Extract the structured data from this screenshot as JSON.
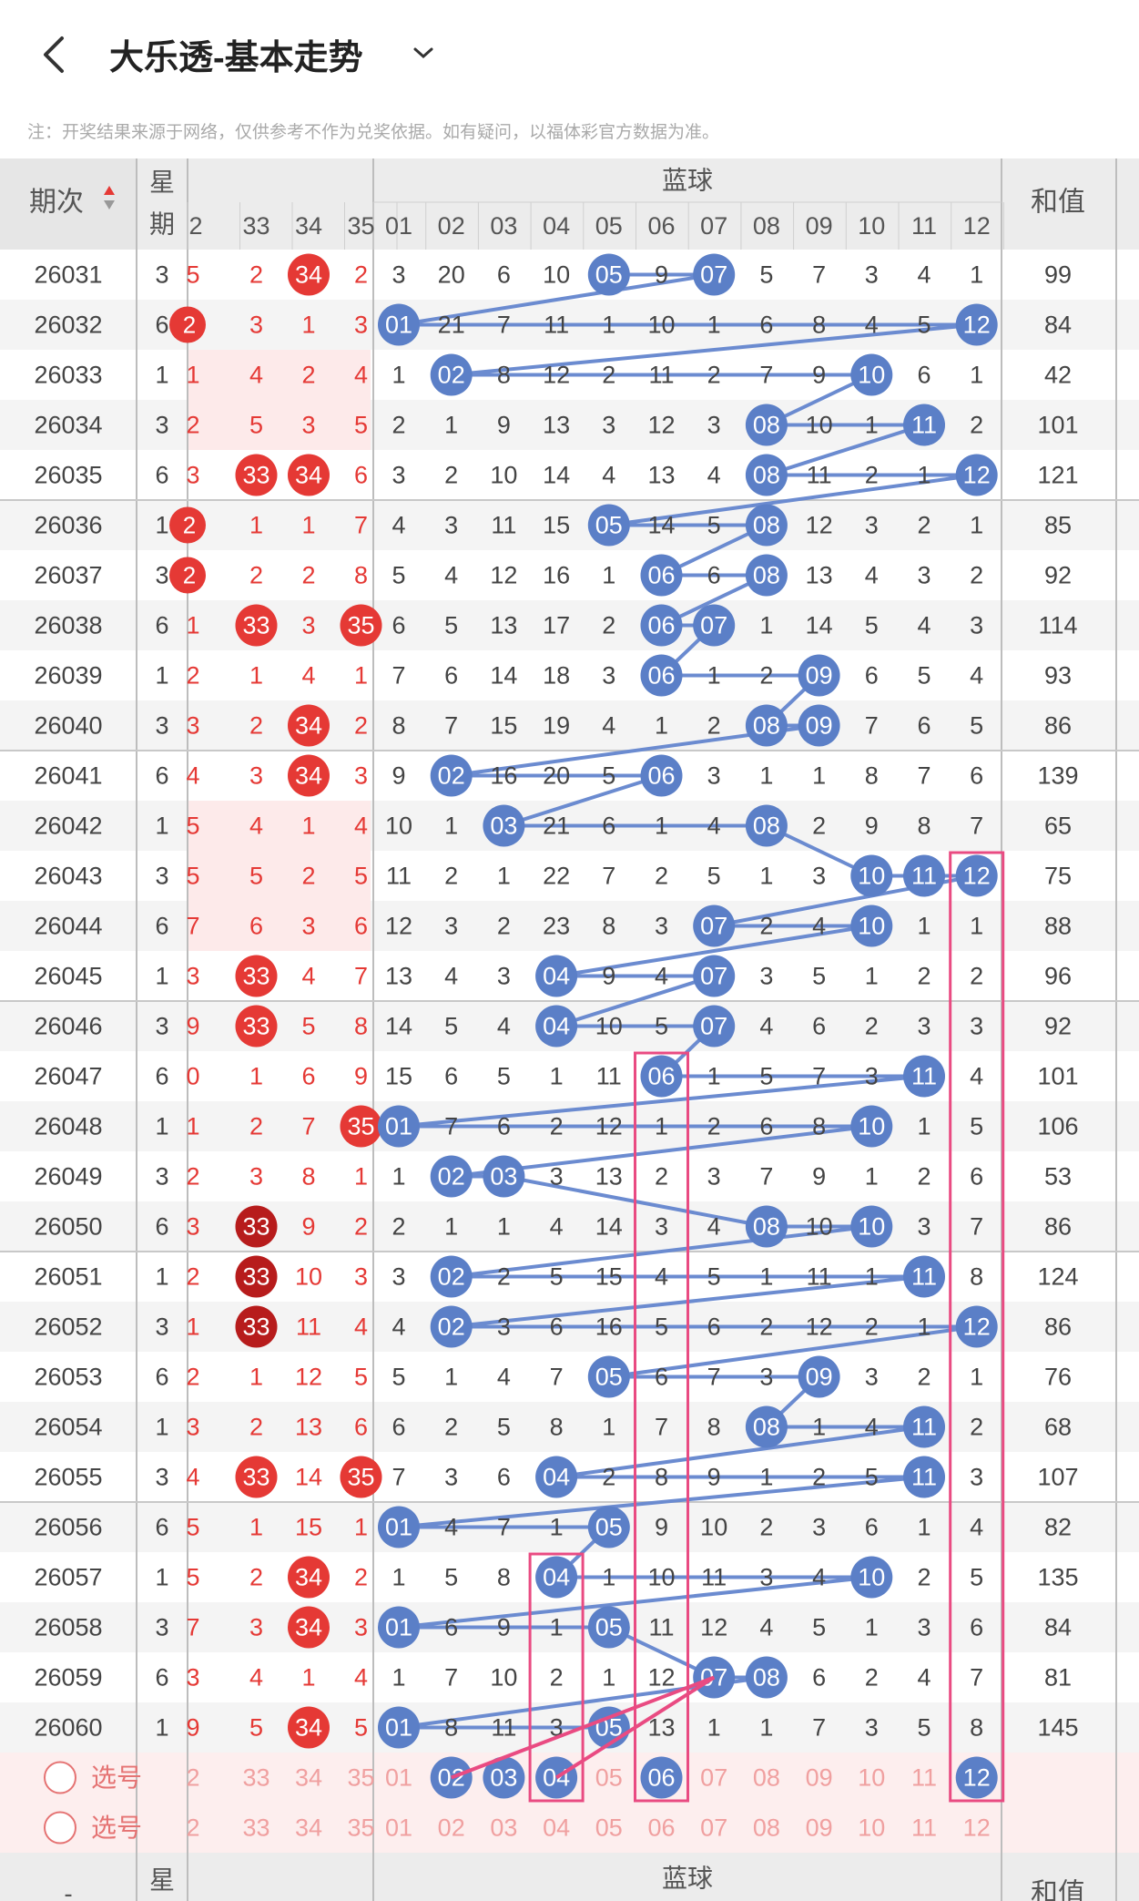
{
  "header": {
    "title": "大乐透-基本走势"
  },
  "note": "注：开奖结果来源于网络，仅供参考不作为兑奖依据。如有疑问，以福体彩官方数据为准。",
  "table": {
    "col_issue": "期次",
    "col_week": [
      "星",
      "期"
    ],
    "blue_label": "蓝球",
    "col_sum": "和值",
    "red_tail_cols": [
      "2",
      "33",
      "34",
      "35"
    ],
    "blue_cols": [
      "01",
      "02",
      "03",
      "04",
      "05",
      "06",
      "07",
      "08",
      "09",
      "10",
      "11",
      "12"
    ],
    "rows": [
      {
        "issue": "26031",
        "week": "3",
        "red": [
          "5",
          "2",
          "34",
          "2"
        ],
        "blue": [
          "3",
          "20",
          "6",
          "10",
          "05",
          "9",
          "07",
          "5",
          "7",
          "3",
          "4",
          "1"
        ],
        "sum": "99"
      },
      {
        "issue": "26032",
        "week": "6",
        "red": [
          "2",
          "3",
          "1",
          "3"
        ],
        "blue": [
          "01",
          "21",
          "7",
          "11",
          "1",
          "10",
          "1",
          "6",
          "8",
          "4",
          "5",
          "12"
        ],
        "sum": "84"
      },
      {
        "issue": "26033",
        "week": "1",
        "red": [
          "1",
          "4",
          "2",
          "4"
        ],
        "blue": [
          "1",
          "02",
          "8",
          "12",
          "2",
          "11",
          "2",
          "7",
          "9",
          "10",
          "6",
          "1"
        ],
        "sum": "42"
      },
      {
        "issue": "26034",
        "week": "3",
        "red": [
          "2",
          "5",
          "3",
          "5"
        ],
        "blue": [
          "2",
          "1",
          "9",
          "13",
          "3",
          "12",
          "3",
          "08",
          "10",
          "1",
          "11",
          "2"
        ],
        "sum": "101"
      },
      {
        "issue": "26035",
        "week": "6",
        "red": [
          "3",
          "33",
          "34",
          "6"
        ],
        "blue": [
          "3",
          "2",
          "10",
          "14",
          "4",
          "13",
          "4",
          "08",
          "11",
          "2",
          "1",
          "12"
        ],
        "sum": "121"
      },
      {
        "issue": "26036",
        "week": "1",
        "red": [
          "2",
          "1",
          "1",
          "7"
        ],
        "blue": [
          "4",
          "3",
          "11",
          "15",
          "05",
          "14",
          "5",
          "08",
          "12",
          "3",
          "2",
          "1"
        ],
        "sum": "85"
      },
      {
        "issue": "26037",
        "week": "3",
        "red": [
          "2",
          "2",
          "2",
          "8"
        ],
        "blue": [
          "5",
          "4",
          "12",
          "16",
          "1",
          "06",
          "6",
          "08",
          "13",
          "4",
          "3",
          "2"
        ],
        "sum": "92"
      },
      {
        "issue": "26038",
        "week": "6",
        "red": [
          "1",
          "33",
          "3",
          "35"
        ],
        "blue": [
          "6",
          "5",
          "13",
          "17",
          "2",
          "06",
          "07",
          "1",
          "14",
          "5",
          "4",
          "3"
        ],
        "sum": "114"
      },
      {
        "issue": "26039",
        "week": "1",
        "red": [
          "2",
          "1",
          "4",
          "1"
        ],
        "blue": [
          "7",
          "6",
          "14",
          "18",
          "3",
          "06",
          "1",
          "2",
          "09",
          "6",
          "5",
          "4"
        ],
        "sum": "93"
      },
      {
        "issue": "26040",
        "week": "3",
        "red": [
          "3",
          "2",
          "34",
          "2"
        ],
        "blue": [
          "8",
          "7",
          "15",
          "19",
          "4",
          "1",
          "2",
          "08",
          "09",
          "7",
          "6",
          "5"
        ],
        "sum": "86"
      },
      {
        "issue": "26041",
        "week": "6",
        "red": [
          "4",
          "3",
          "34",
          "3"
        ],
        "blue": [
          "9",
          "02",
          "16",
          "20",
          "5",
          "06",
          "3",
          "1",
          "1",
          "8",
          "7",
          "6"
        ],
        "sum": "139"
      },
      {
        "issue": "26042",
        "week": "1",
        "red": [
          "5",
          "4",
          "1",
          "4"
        ],
        "blue": [
          "10",
          "1",
          "03",
          "21",
          "6",
          "1",
          "4",
          "08",
          "2",
          "9",
          "8",
          "7"
        ],
        "sum": "65"
      },
      {
        "issue": "26043",
        "week": "3",
        "red": [
          "5",
          "5",
          "2",
          "5"
        ],
        "blue": [
          "11",
          "2",
          "1",
          "22",
          "7",
          "2",
          "5",
          "1",
          "3",
          "10",
          "11",
          "12"
        ],
        "sum": "75"
      },
      {
        "issue": "26044",
        "week": "6",
        "red": [
          "7",
          "6",
          "3",
          "6"
        ],
        "blue": [
          "12",
          "3",
          "2",
          "23",
          "8",
          "3",
          "07",
          "2",
          "4",
          "10",
          "1",
          "1"
        ],
        "sum": "88"
      },
      {
        "issue": "26045",
        "week": "1",
        "red": [
          "3",
          "33",
          "4",
          "7"
        ],
        "blue": [
          "13",
          "4",
          "3",
          "04",
          "9",
          "4",
          "07",
          "3",
          "5",
          "1",
          "2",
          "2"
        ],
        "sum": "96"
      },
      {
        "issue": "26046",
        "week": "3",
        "red": [
          "9",
          "33",
          "5",
          "8"
        ],
        "blue": [
          "14",
          "5",
          "4",
          "04",
          "10",
          "5",
          "07",
          "4",
          "6",
          "2",
          "3",
          "3"
        ],
        "sum": "92"
      },
      {
        "issue": "26047",
        "week": "6",
        "red": [
          "0",
          "1",
          "6",
          "9"
        ],
        "blue": [
          "15",
          "6",
          "5",
          "1",
          "11",
          "06",
          "1",
          "5",
          "7",
          "3",
          "11",
          "4"
        ],
        "sum": "101"
      },
      {
        "issue": "26048",
        "week": "1",
        "red": [
          "1",
          "2",
          "7",
          "35"
        ],
        "blue": [
          "01",
          "7",
          "6",
          "2",
          "12",
          "1",
          "2",
          "6",
          "8",
          "10",
          "1",
          "5"
        ],
        "sum": "106"
      },
      {
        "issue": "26049",
        "week": "3",
        "red": [
          "2",
          "3",
          "8",
          "1"
        ],
        "blue": [
          "1",
          "02",
          "03",
          "3",
          "13",
          "2",
          "3",
          "7",
          "9",
          "1",
          "2",
          "6"
        ],
        "sum": "53"
      },
      {
        "issue": "26050",
        "week": "6",
        "red": [
          "3",
          "33",
          "9",
          "2"
        ],
        "blue": [
          "2",
          "1",
          "1",
          "4",
          "14",
          "3",
          "4",
          "08",
          "10",
          "10",
          "3",
          "7"
        ],
        "sum": "86"
      },
      {
        "issue": "26051",
        "week": "1",
        "red": [
          "2",
          "33",
          "10",
          "3"
        ],
        "blue": [
          "3",
          "02",
          "2",
          "5",
          "15",
          "4",
          "5",
          "1",
          "11",
          "1",
          "11",
          "8"
        ],
        "sum": "124"
      },
      {
        "issue": "26052",
        "week": "3",
        "red": [
          "1",
          "33",
          "11",
          "4"
        ],
        "blue": [
          "4",
          "02",
          "3",
          "6",
          "16",
          "5",
          "6",
          "2",
          "12",
          "2",
          "1",
          "12"
        ],
        "sum": "86"
      },
      {
        "issue": "26053",
        "week": "6",
        "red": [
          "2",
          "1",
          "12",
          "5"
        ],
        "blue": [
          "5",
          "1",
          "4",
          "7",
          "05",
          "6",
          "7",
          "3",
          "09",
          "3",
          "2",
          "1"
        ],
        "sum": "76"
      },
      {
        "issue": "26054",
        "week": "1",
        "red": [
          "3",
          "2",
          "13",
          "6"
        ],
        "blue": [
          "6",
          "2",
          "5",
          "8",
          "1",
          "7",
          "8",
          "08",
          "1",
          "4",
          "11",
          "2"
        ],
        "sum": "68"
      },
      {
        "issue": "26055",
        "week": "3",
        "red": [
          "4",
          "33",
          "14",
          "35"
        ],
        "blue": [
          "7",
          "3",
          "6",
          "04",
          "2",
          "8",
          "9",
          "1",
          "2",
          "5",
          "11",
          "3"
        ],
        "sum": "107"
      },
      {
        "issue": "26056",
        "week": "6",
        "red": [
          "5",
          "1",
          "15",
          "1"
        ],
        "blue": [
          "01",
          "4",
          "7",
          "1",
          "05",
          "9",
          "10",
          "2",
          "3",
          "6",
          "1",
          "4"
        ],
        "sum": "82"
      },
      {
        "issue": "26057",
        "week": "1",
        "red": [
          "5",
          "2",
          "34",
          "2"
        ],
        "blue": [
          "1",
          "5",
          "8",
          "04",
          "1",
          "10",
          "11",
          "3",
          "4",
          "10",
          "2",
          "5"
        ],
        "sum": "135"
      },
      {
        "issue": "26058",
        "week": "3",
        "red": [
          "7",
          "3",
          "34",
          "3"
        ],
        "blue": [
          "01",
          "6",
          "9",
          "1",
          "05",
          "11",
          "12",
          "4",
          "5",
          "1",
          "3",
          "6"
        ],
        "sum": "84"
      },
      {
        "issue": "26059",
        "week": "6",
        "red": [
          "3",
          "4",
          "1",
          "4"
        ],
        "blue": [
          "1",
          "7",
          "10",
          "2",
          "1",
          "12",
          "07",
          "08",
          "6",
          "2",
          "4",
          "7"
        ],
        "sum": "81"
      },
      {
        "issue": "26060",
        "week": "1",
        "red": [
          "9",
          "5",
          "34",
          "5"
        ],
        "blue": [
          "01",
          "8",
          "11",
          "3",
          "05",
          "13",
          "1",
          "1",
          "7",
          "3",
          "5",
          "8"
        ],
        "sum": "145"
      }
    ],
    "pick_label": "选号",
    "pick_red": [
      "2",
      "33",
      "34",
      "35"
    ],
    "pick_blue": [
      "01",
      "02",
      "03",
      "04",
      "05",
      "06",
      "07",
      "08",
      "09",
      "10",
      "11",
      "12"
    ],
    "pick1_selected": [
      "02",
      "03",
      "04",
      "06",
      "12"
    ]
  },
  "colors": {
    "red": "#e53935",
    "dark_red": "#b71c1c",
    "blue_ball": "#5b7fc7",
    "pink": "#e94b82"
  }
}
